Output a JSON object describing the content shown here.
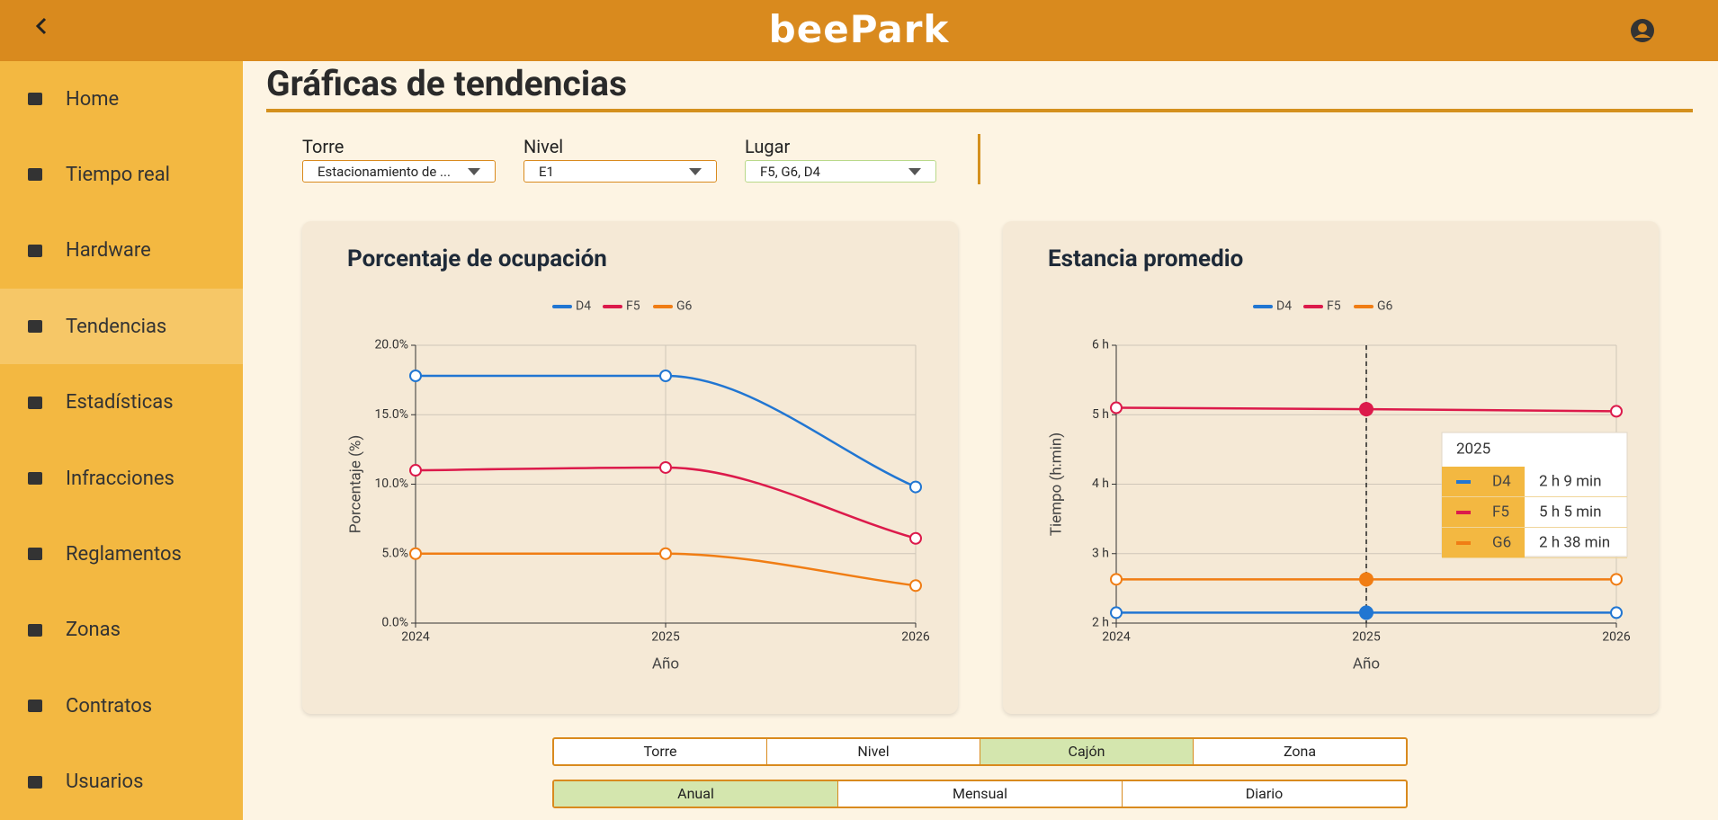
{
  "header": {
    "logo": "beePark"
  },
  "sidebar": {
    "items": [
      "Home",
      "Tiempo real",
      "Hardware",
      "Tendencias",
      "Estadísticas",
      "Infracciones",
      "Reglamentos",
      "Zonas",
      "Contratos",
      "Usuarios"
    ],
    "active": 3
  },
  "page": {
    "title": "Gráficas de tendencias"
  },
  "filters": [
    {
      "label": "Torre",
      "value": "Estacionamiento de ..."
    },
    {
      "label": "Nivel",
      "value": "E1"
    },
    {
      "label": "Lugar",
      "value": "F5, G6, D4"
    }
  ],
  "chart_data": [
    {
      "type": "line",
      "title": "Porcentaje de ocupación",
      "x_label": "Año",
      "y_label": "Porcentaje (%)",
      "x": [
        2024,
        2025,
        2026
      ],
      "xlim": [
        2024,
        2026
      ],
      "xticks": [
        2024,
        2025,
        2026
      ],
      "ylim": [
        0,
        20
      ],
      "yticks": [
        {
          "value": 0,
          "label": "0.0%"
        },
        {
          "value": 5,
          "label": "5.0%"
        },
        {
          "value": 10,
          "label": "10.0%"
        },
        {
          "value": 15,
          "label": "15.0%"
        },
        {
          "value": 20,
          "label": "20.0%"
        }
      ],
      "grid": true,
      "legend": "top",
      "series": [
        {
          "name": "D4",
          "color": "#2176d2",
          "values": [
            17.8,
            17.8,
            9.8
          ]
        },
        {
          "name": "F5",
          "color": "#dc1a4b",
          "values": [
            11.0,
            11.2,
            6.1
          ]
        },
        {
          "name": "G6",
          "color": "#f07d14",
          "values": [
            5.0,
            5.0,
            2.7
          ]
        }
      ]
    },
    {
      "type": "line",
      "title": "Estancia promedio",
      "x_label": "Año",
      "y_label": "Tiempo (h:min)",
      "x": [
        2024,
        2025,
        2026
      ],
      "xlim": [
        2024,
        2026
      ],
      "xticks": [
        2024,
        2025,
        2026
      ],
      "ylim": [
        2,
        6
      ],
      "yticks": [
        {
          "value": 2,
          "label": "2 h"
        },
        {
          "value": 3,
          "label": "3 h"
        },
        {
          "value": 4,
          "label": "4 h"
        },
        {
          "value": 5,
          "label": "5 h"
        },
        {
          "value": 6,
          "label": "6 h"
        }
      ],
      "grid": true,
      "legend": "top",
      "hover_index": 1,
      "series": [
        {
          "name": "D4",
          "color": "#2176d2",
          "values": [
            2.15,
            2.15,
            2.15
          ]
        },
        {
          "name": "F5",
          "color": "#dc1a4b",
          "values": [
            5.1,
            5.08,
            5.05
          ]
        },
        {
          "name": "G6",
          "color": "#f07d14",
          "values": [
            2.63,
            2.63,
            2.63
          ]
        }
      ],
      "tooltip": {
        "title": "2025",
        "rows": [
          {
            "name": "D4",
            "text": "2 h 9 min"
          },
          {
            "name": "F5",
            "text": "5 h 5 min"
          },
          {
            "name": "G6",
            "text": "2 h 38 min"
          }
        ]
      }
    }
  ],
  "group_buttons": {
    "options": [
      "Torre",
      "Nivel",
      "Cajón",
      "Zona"
    ],
    "selected": 2
  },
  "period_buttons": {
    "options": [
      "Anual",
      "Mensual",
      "Diario"
    ],
    "selected": 0
  }
}
